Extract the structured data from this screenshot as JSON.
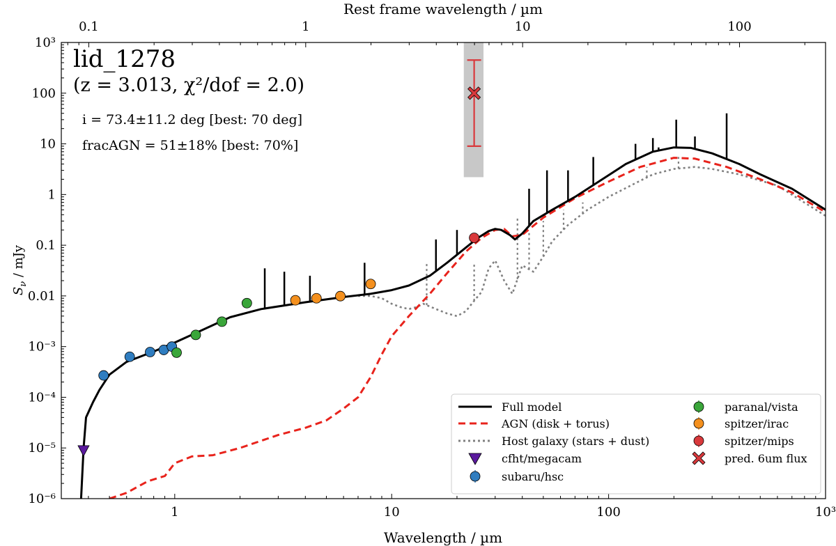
{
  "chart_data": {
    "type": "line",
    "title": "lid_1278",
    "subtitle": "(z = 3.013, χ²/dof = 2.0)",
    "annotations": [
      "i = 73.4±11.2 deg [best: 70 deg]",
      "fracAGN = 51±18% [best: 70%]"
    ],
    "xlabel": "Wavelength / µm",
    "ylabel": "S_ν / mJy",
    "top_xlabel": "Rest frame wavelength / µm",
    "x_scale": "log",
    "y_scale": "log",
    "xlim": [
      0.3,
      1000
    ],
    "ylim": [
      1e-06,
      1000
    ],
    "top_xlim": [
      0.0747,
      249.2
    ],
    "x_ticks": [
      {
        "v": 1,
        "label": "1"
      },
      {
        "v": 10,
        "label": "10"
      },
      {
        "v": 100,
        "label": "100"
      },
      {
        "v": 1000,
        "label": "10³"
      }
    ],
    "top_x_ticks": [
      {
        "v": 0.1,
        "label": "0.1"
      },
      {
        "v": 1,
        "label": "1"
      },
      {
        "v": 10,
        "label": "10"
      },
      {
        "v": 100,
        "label": "100"
      }
    ],
    "y_ticks": [
      {
        "v": 1e-06,
        "label": "10⁻⁶"
      },
      {
        "v": 1e-05,
        "label": "10⁻⁵"
      },
      {
        "v": 0.0001,
        "label": "10⁻⁴"
      },
      {
        "v": 0.001,
        "label": "10⁻³"
      },
      {
        "v": 0.01,
        "label": "0.01"
      },
      {
        "v": 0.1,
        "label": "0.1"
      },
      {
        "v": 1,
        "label": "1"
      },
      {
        "v": 10,
        "label": "10"
      },
      {
        "v": 100,
        "label": "100"
      },
      {
        "v": 1000,
        "label": "10³"
      }
    ],
    "grid": false,
    "legend_position": "bottom-right",
    "colors": {
      "full_model": "#000000",
      "agn": "#e8231c",
      "host": "#808080",
      "cfht": "#5b1a9e",
      "subaru": "#2f7dc0",
      "vista": "#3aa63a",
      "irac": "#f4901e",
      "mips": "#d9393c",
      "pred": "#d9393c",
      "pred_band": "#c8c8c8"
    },
    "series": [
      {
        "name": "Full model",
        "style": "solid",
        "points": [
          [
            0.37,
            1e-06
          ],
          [
            0.38,
            1e-05
          ],
          [
            0.39,
            4e-05
          ],
          [
            0.42,
            8e-05
          ],
          [
            0.45,
            0.00014
          ],
          [
            0.5,
            0.00028
          ],
          [
            0.6,
            0.0005
          ],
          [
            0.8,
            0.0008
          ],
          [
            1.0,
            0.0012
          ],
          [
            1.3,
            0.002
          ],
          [
            1.8,
            0.0038
          ],
          [
            2.5,
            0.0055
          ],
          [
            4,
            0.0075
          ],
          [
            6,
            0.0095
          ],
          [
            8,
            0.011
          ],
          [
            10,
            0.013
          ],
          [
            12,
            0.016
          ],
          [
            15,
            0.025
          ],
          [
            18,
            0.045
          ],
          [
            22,
            0.09
          ],
          [
            25,
            0.14
          ],
          [
            28,
            0.19
          ],
          [
            30,
            0.21
          ],
          [
            32,
            0.2
          ],
          [
            35,
            0.16
          ],
          [
            37,
            0.13
          ],
          [
            40,
            0.17
          ],
          [
            45,
            0.3
          ],
          [
            55,
            0.5
          ],
          [
            70,
            0.9
          ],
          [
            90,
            1.8
          ],
          [
            120,
            4
          ],
          [
            160,
            7
          ],
          [
            200,
            8.5
          ],
          [
            240,
            8.3
          ],
          [
            300,
            6.5
          ],
          [
            400,
            4
          ],
          [
            500,
            2.5
          ],
          [
            700,
            1.3
          ],
          [
            1000,
            0.5
          ]
        ],
        "spikes": [
          [
            2.6,
            0.035
          ],
          [
            3.2,
            0.03
          ],
          [
            4.2,
            0.025
          ],
          [
            7.5,
            0.045
          ],
          [
            16,
            0.13
          ],
          [
            20,
            0.2
          ],
          [
            43,
            1.3
          ],
          [
            52,
            3
          ],
          [
            65,
            3
          ],
          [
            85,
            5.5
          ],
          [
            133,
            10
          ],
          [
            160,
            13
          ],
          [
            170,
            8.5
          ],
          [
            205,
            30
          ],
          [
            250,
            14
          ],
          [
            350,
            40
          ]
        ]
      },
      {
        "name": "AGN (disk + torus)",
        "style": "dashed",
        "points": [
          [
            0.5,
            1e-06
          ],
          [
            0.6,
            1.3e-06
          ],
          [
            0.75,
            2.2e-06
          ],
          [
            0.9,
            2.8e-06
          ],
          [
            1.0,
            5e-06
          ],
          [
            1.2,
            6.8e-06
          ],
          [
            1.5,
            7.2e-06
          ],
          [
            2,
            1e-05
          ],
          [
            3,
            1.8e-05
          ],
          [
            4,
            2.5e-05
          ],
          [
            5,
            3.5e-05
          ],
          [
            6,
            6e-05
          ],
          [
            7,
            0.0001
          ],
          [
            8,
            0.00025
          ],
          [
            9,
            0.0007
          ],
          [
            10,
            0.0016
          ],
          [
            12,
            0.004
          ],
          [
            15,
            0.011
          ],
          [
            18,
            0.028
          ],
          [
            22,
            0.075
          ],
          [
            26,
            0.14
          ],
          [
            30,
            0.2
          ],
          [
            33,
            0.21
          ],
          [
            36,
            0.15
          ],
          [
            40,
            0.16
          ],
          [
            50,
            0.35
          ],
          [
            70,
            0.85
          ],
          [
            100,
            1.8
          ],
          [
            140,
            3.5
          ],
          [
            200,
            5.3
          ],
          [
            250,
            5.1
          ],
          [
            350,
            3.5
          ],
          [
            500,
            2
          ],
          [
            700,
            1.1
          ],
          [
            1000,
            0.45
          ]
        ]
      },
      {
        "name": "Host galaxy (stars + dust)",
        "style": "dotted",
        "points": [
          [
            7,
            0.01
          ],
          [
            8,
            0.01
          ],
          [
            9,
            0.009
          ],
          [
            10,
            0.007
          ],
          [
            11,
            0.006
          ],
          [
            12,
            0.0055
          ],
          [
            13,
            0.006
          ],
          [
            14,
            0.007
          ],
          [
            16,
            0.0055
          ],
          [
            18,
            0.0045
          ],
          [
            20,
            0.004
          ],
          [
            22,
            0.005
          ],
          [
            24,
            0.008
          ],
          [
            26,
            0.012
          ],
          [
            28,
            0.035
          ],
          [
            30,
            0.05
          ],
          [
            33,
            0.02
          ],
          [
            36,
            0.011
          ],
          [
            40,
            0.04
          ],
          [
            45,
            0.03
          ],
          [
            50,
            0.06
          ],
          [
            55,
            0.12
          ],
          [
            65,
            0.25
          ],
          [
            80,
            0.5
          ],
          [
            100,
            0.9
          ],
          [
            130,
            1.6
          ],
          [
            160,
            2.5
          ],
          [
            200,
            3.2
          ],
          [
            250,
            3.5
          ],
          [
            300,
            3.2
          ],
          [
            400,
            2.5
          ],
          [
            600,
            1.5
          ],
          [
            1000,
            0.38
          ]
        ],
        "spikes": [
          [
            14.5,
            0.045
          ],
          [
            24,
            0.045
          ],
          [
            38,
            0.35
          ],
          [
            43,
            0.18
          ],
          [
            50,
            0.3
          ],
          [
            62,
            0.5
          ],
          [
            76,
            0.7
          ],
          [
            150,
            3.5
          ],
          [
            210,
            5.5
          ]
        ]
      }
    ],
    "photometry": [
      {
        "name": "cfht/megacam",
        "marker": "triangle-down",
        "points": [
          [
            0.38,
            9.2e-06
          ]
        ]
      },
      {
        "name": "subaru/hsc",
        "marker": "circle",
        "points": [
          [
            0.47,
            0.00027
          ],
          [
            0.62,
            0.00063
          ],
          [
            0.77,
            0.00078
          ],
          [
            0.89,
            0.00086
          ],
          [
            0.97,
            0.001
          ]
        ]
      },
      {
        "name": "paranal/vista",
        "marker": "circle",
        "points": [
          [
            1.02,
            0.00076
          ],
          [
            1.25,
            0.0017
          ],
          [
            1.65,
            0.0031
          ],
          [
            2.15,
            0.0072
          ]
        ]
      },
      {
        "name": "spitzer/irac",
        "marker": "circle",
        "points": [
          [
            3.6,
            0.0082
          ],
          [
            4.5,
            0.009
          ],
          [
            5.8,
            0.0099
          ],
          [
            8.0,
            0.0172
          ]
        ]
      },
      {
        "name": "spitzer/mips",
        "marker": "circle",
        "points": [
          [
            24,
            0.14
          ]
        ]
      },
      {
        "name": "pred. 6um flux",
        "marker": "x-filled",
        "points": [
          [
            24,
            100
          ]
        ],
        "err_low": 9,
        "err_high": 450,
        "band_xlim": [
          21.5,
          26.5
        ],
        "band_ylim": [
          2.2,
          1000
        ]
      }
    ]
  }
}
